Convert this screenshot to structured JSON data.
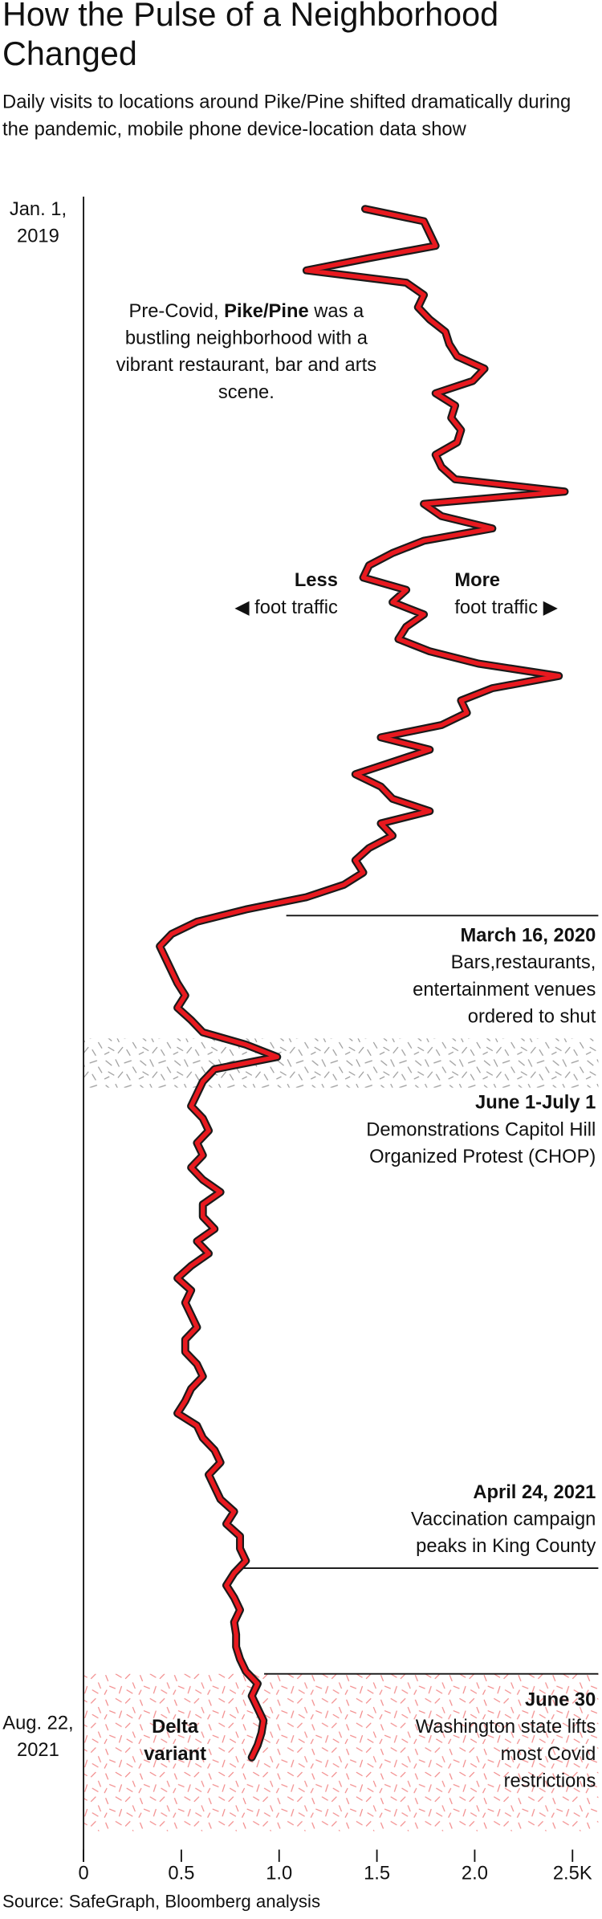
{
  "chart_data": {
    "type": "line",
    "title": "How the Pulse of a Neighborhood Changed",
    "subtitle": "Daily visits to locations around Pike/Pine shifted dramatically during the pandemic, mobile phone device-location data show",
    "categories": [
      "Jan. 1, 2019",
      null,
      null,
      null,
      null,
      null,
      null,
      null,
      null,
      null,
      null,
      null,
      null,
      null,
      null,
      null,
      null,
      null,
      null,
      null,
      null,
      null,
      null,
      null,
      null,
      null,
      null,
      null,
      null,
      null,
      null,
      null,
      null,
      null,
      null,
      null,
      null,
      null,
      null,
      null,
      null,
      null,
      null,
      null,
      null,
      null,
      null,
      null,
      null,
      null,
      null,
      null,
      null,
      null,
      null,
      null,
      null,
      null,
      null,
      null,
      null,
      null,
      null,
      null,
      null,
      null,
      null,
      null,
      null,
      null,
      null,
      null,
      null,
      null,
      null,
      null,
      null,
      null,
      null,
      null,
      null,
      null,
      null,
      null,
      null,
      null,
      null,
      null,
      null,
      null,
      null,
      null,
      null,
      null,
      null,
      null,
      null,
      null,
      null,
      null,
      null,
      null,
      null,
      null,
      null,
      null,
      null,
      null,
      null,
      null,
      null,
      null,
      null,
      null,
      null,
      null,
      null,
      null,
      null,
      null,
      null,
      null,
      null,
      null,
      null,
      null,
      "Aug. 22, 2021"
    ],
    "values": [
      1.44,
      1.74,
      1.77,
      1.8,
      1.46,
      1.14,
      1.65,
      1.74,
      1.71,
      1.77,
      1.85,
      1.87,
      1.91,
      2.05,
      1.99,
      1.8,
      1.9,
      1.88,
      1.93,
      1.91,
      1.8,
      1.83,
      1.9,
      2.46,
      1.74,
      1.83,
      2.09,
      1.74,
      1.58,
      1.46,
      1.43,
      1.65,
      1.58,
      1.74,
      1.65,
      1.61,
      1.77,
      2.02,
      2.43,
      2.09,
      1.93,
      1.96,
      1.83,
      1.52,
      1.77,
      1.58,
      1.39,
      1.52,
      1.58,
      1.77,
      1.52,
      1.58,
      1.46,
      1.39,
      1.43,
      1.33,
      1.14,
      0.83,
      0.58,
      0.45,
      0.39,
      0.42,
      0.45,
      0.48,
      0.52,
      0.48,
      0.55,
      0.61,
      0.83,
      0.99,
      0.67,
      0.61,
      0.58,
      0.55,
      0.61,
      0.64,
      0.58,
      0.61,
      0.55,
      0.61,
      0.7,
      0.61,
      0.61,
      0.67,
      0.58,
      0.64,
      0.55,
      0.48,
      0.55,
      0.52,
      0.55,
      0.58,
      0.52,
      0.52,
      0.58,
      0.61,
      0.55,
      0.52,
      0.48,
      0.58,
      0.61,
      0.67,
      0.7,
      0.64,
      0.67,
      0.7,
      0.77,
      0.73,
      0.8,
      0.8,
      0.83,
      0.77,
      0.73,
      0.77,
      0.8,
      0.77,
      0.78,
      0.78,
      0.8,
      0.83,
      0.89,
      0.86,
      0.89,
      0.92,
      0.91,
      0.89,
      0.86
    ],
    "color": "#e8191f",
    "xlim": [
      0,
      2.5
    ],
    "xticks": [
      0,
      0.5,
      {
        "value": 1,
        "label": "1.0"
      },
      1.5,
      {
        "value": 2,
        "label": "2.0"
      },
      {
        "value": 2.5,
        "label": "2.5K"
      }
    ],
    "pre_covid": {
      "before": "Pre-Covid, ",
      "bold": "Pike/Pine",
      "after": " was a bustling neighborhood with a vibrant restaurant, bar and arts scene."
    },
    "less": {
      "title": "Less",
      "text": "◀ foot traffic"
    },
    "more": {
      "title": "More",
      "text": "foot traffic ▶"
    },
    "annotations": [
      {
        "title": "March 16, 2020",
        "text": "Bars,restaurants, entertainment venues ordered to shut"
      },
      {
        "title": "June 1-July 1",
        "text": "Demonstrations Capitol Hill Organized Protest (CHOP)"
      },
      {
        "title": "April 24, 2021",
        "text": "Vaccination campaign peaks in King County"
      },
      {
        "title": "June 30",
        "text": "Washington state lifts most Covid restrictions"
      }
    ],
    "delta": "Delta variant",
    "source": "Source: SafeGraph, Bloomberg analysis"
  }
}
